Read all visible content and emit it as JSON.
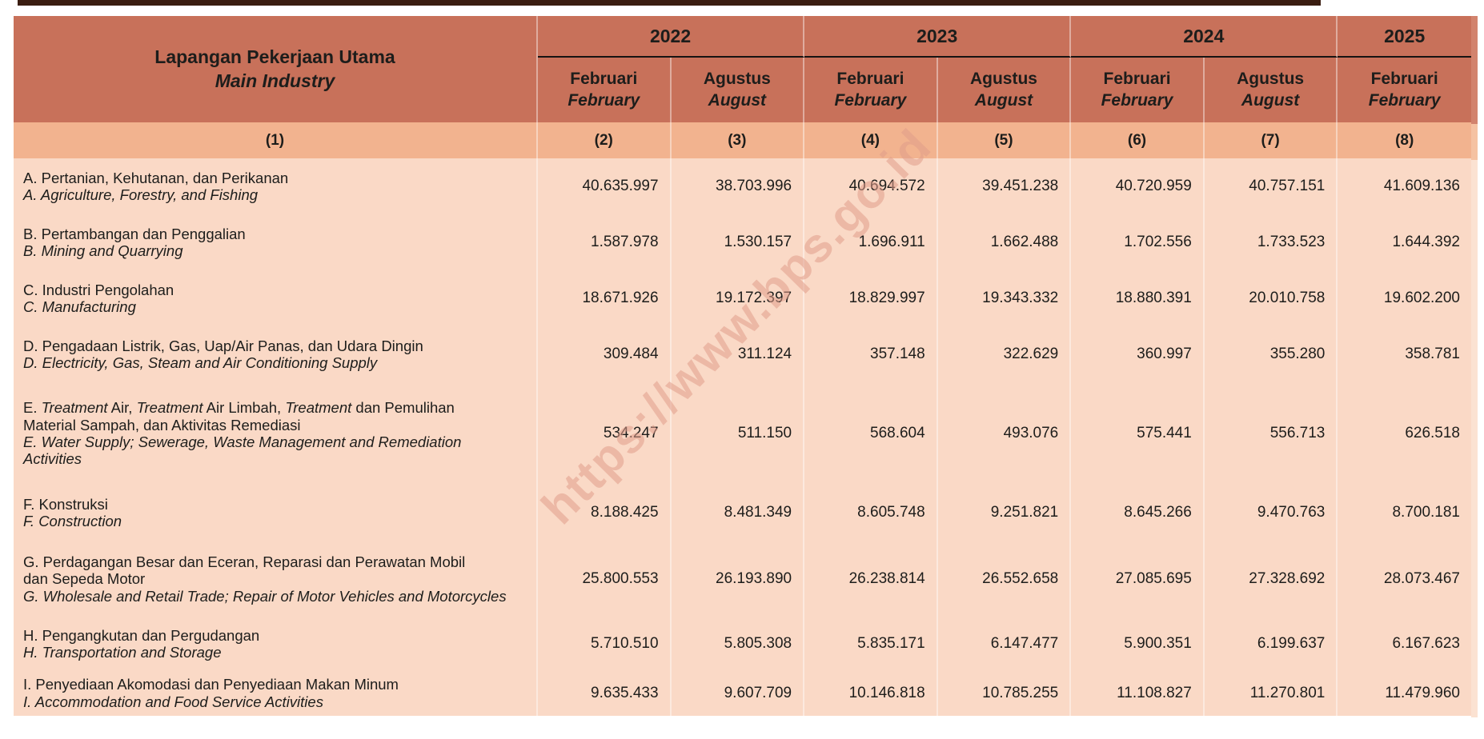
{
  "table": {
    "title_id": "Lapangan Pekerjaan Utama",
    "title_en": "Main Industry",
    "label_col_number": "(1)",
    "years": [
      {
        "label": "2022",
        "months": [
          {
            "id": "Februari",
            "en": "February",
            "col": "(2)"
          },
          {
            "id": "Agustus",
            "en": "August",
            "col": "(3)"
          }
        ]
      },
      {
        "label": "2023",
        "months": [
          {
            "id": "Februari",
            "en": "February",
            "col": "(4)"
          },
          {
            "id": "Agustus",
            "en": "August",
            "col": "(5)"
          }
        ]
      },
      {
        "label": "2024",
        "months": [
          {
            "id": "Februari",
            "en": "February",
            "col": "(6)"
          },
          {
            "id": "Agustus",
            "en": "August",
            "col": "(7)"
          }
        ]
      },
      {
        "label": "2025",
        "months": [
          {
            "id": "Februari",
            "en": "February",
            "col": "(8)"
          }
        ]
      }
    ],
    "rows": [
      {
        "key": "A",
        "label_id_segments": [
          {
            "text": "A. Pertanian, Kehutanan, dan Perikanan",
            "italic": false
          }
        ],
        "label_en": "A. Agriculture, Forestry, and Fishing",
        "values": [
          "40.635.997",
          "38.703.996",
          "40.694.572",
          "39.451.238",
          "40.720.959",
          "40.757.151",
          "41.609.136"
        ]
      },
      {
        "key": "B",
        "label_id_segments": [
          {
            "text": "B. Pertambangan dan Penggalian",
            "italic": false
          }
        ],
        "label_en": "B. Mining and Quarrying",
        "values": [
          "1.587.978",
          "1.530.157",
          "1.696.911",
          "1.662.488",
          "1.702.556",
          "1.733.523",
          "1.644.392"
        ]
      },
      {
        "key": "C",
        "label_id_segments": [
          {
            "text": "C. Industri Pengolahan",
            "italic": false
          }
        ],
        "label_en": "C. Manufacturing",
        "values": [
          "18.671.926",
          "19.172.397",
          "18.829.997",
          "19.343.332",
          "18.880.391",
          "20.010.758",
          "19.602.200"
        ]
      },
      {
        "key": "D",
        "label_id_segments": [
          {
            "text": "D. Pengadaan Listrik, Gas, Uap/Air Panas, dan Udara Dingin",
            "italic": false
          }
        ],
        "label_en": "D. Electricity, Gas, Steam and Air Conditioning Supply",
        "values": [
          "309.484",
          "311.124",
          "357.148",
          "322.629",
          "360.997",
          "355.280",
          "358.781"
        ]
      },
      {
        "key": "E",
        "label_id_segments": [
          {
            "text": "E. ",
            "italic": false
          },
          {
            "text": "Treatment",
            "italic": true
          },
          {
            "text": " Air, ",
            "italic": false
          },
          {
            "text": "Treatment",
            "italic": true
          },
          {
            "text": " Air Limbah, ",
            "italic": false
          },
          {
            "text": "Treatment",
            "italic": true
          },
          {
            "text": " dan Pemulihan\nMaterial Sampah, dan Aktivitas Remediasi",
            "italic": false
          }
        ],
        "label_en": "E. Water Supply; Sewerage, Waste Management and Remediation\nActivities",
        "values": [
          "534.247",
          "511.150",
          "568.604",
          "493.076",
          "575.441",
          "556.713",
          "626.518"
        ]
      },
      {
        "key": "F",
        "label_id_segments": [
          {
            "text": "F. Konstruksi",
            "italic": false
          }
        ],
        "label_en": "F. Construction",
        "values": [
          "8.188.425",
          "8.481.349",
          "8.605.748",
          "9.251.821",
          "8.645.266",
          "9.470.763",
          "8.700.181"
        ]
      },
      {
        "key": "G",
        "label_id_segments": [
          {
            "text": "G. Perdagangan Besar dan Eceran, Reparasi dan Perawatan Mobil\ndan Sepeda Motor",
            "italic": false
          }
        ],
        "label_en": "G. Wholesale and Retail Trade; Repair of Motor Vehicles and Motorcycles",
        "values": [
          "25.800.553",
          "26.193.890",
          "26.238.814",
          "26.552.658",
          "27.085.695",
          "27.328.692",
          "28.073.467"
        ]
      },
      {
        "key": "H",
        "label_id_segments": [
          {
            "text": "H. Pengangkutan dan Pergudangan",
            "italic": false
          }
        ],
        "label_en": "H. Transportation and Storage",
        "values": [
          "5.710.510",
          "5.805.308",
          "5.835.171",
          "6.147.477",
          "5.900.351",
          "6.199.637",
          "6.167.623"
        ]
      },
      {
        "key": "I",
        "label_id_segments": [
          {
            "text": "I. Penyediaan Akomodasi dan Penyediaan Makan Minum",
            "italic": false
          }
        ],
        "label_en": "I. Accommodation and Food Service Activities",
        "values": [
          "9.635.433",
          "9.607.709",
          "10.146.818",
          "10.785.255",
          "11.108.827",
          "11.270.801",
          "11.479.960"
        ]
      }
    ]
  },
  "watermark": "https://www.bps.go.id",
  "colors": {
    "header_bg": "#C8715A",
    "subheader_bg": "#F2B38F",
    "row_bg": "#FAD9C6",
    "text": "#1D1D1B",
    "year_underline": "#161412",
    "column_separator": "rgba(255,255,255,0.42)",
    "watermark": "rgba(224,156,138,0.55)",
    "top_bar": "#3A1D11"
  }
}
